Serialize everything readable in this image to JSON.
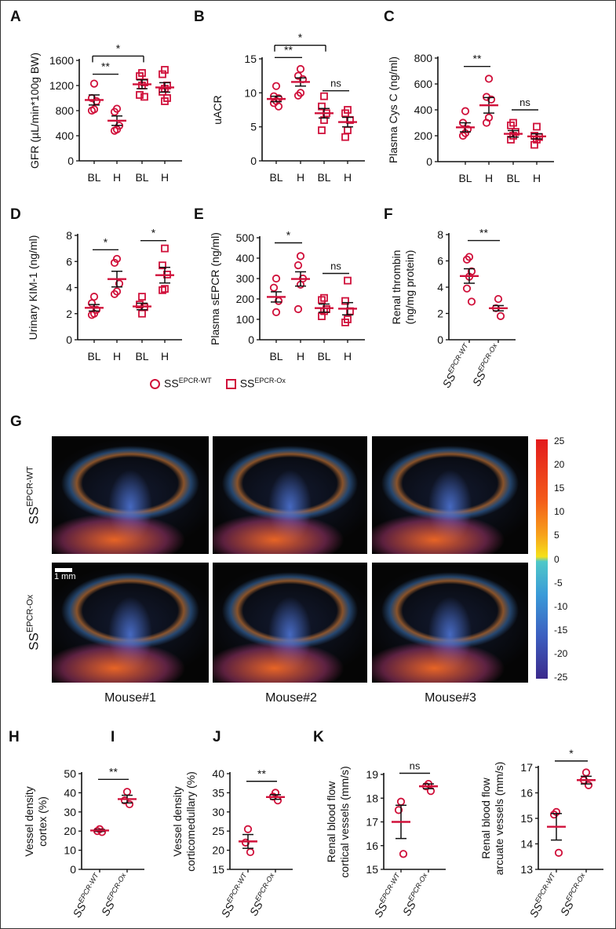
{
  "colors": {
    "marker": "#d0103a",
    "errorbar": "#111111"
  },
  "panel_labels": [
    "A",
    "B",
    "C",
    "D",
    "E",
    "F",
    "G",
    "H",
    "I",
    "J",
    "K"
  ],
  "legend": {
    "wt_prefix": "SS",
    "wt_sup": "EPCR-WT",
    "ox_prefix": "SS",
    "ox_sup": "EPCR-Ox"
  },
  "panel_g": {
    "rows": [
      {
        "prefix": "SS",
        "sup": "EPCR-WT"
      },
      {
        "prefix": "SS",
        "sup": "EPCR-Ox"
      }
    ],
    "columns": [
      "Mouse#1",
      "Mouse#2",
      "Mouse#3"
    ],
    "scale_bar": "1 mm",
    "colorbar_ticks": [
      "25",
      "20",
      "15",
      "10",
      "5",
      "0",
      "-5",
      "-10",
      "-15",
      "-20",
      "-25"
    ],
    "colorbar_range": [
      -25,
      25
    ]
  },
  "chart_data": [
    {
      "id": "A",
      "type": "scatter",
      "ylabel": [
        "GFR (µL/min*100g BW)"
      ],
      "ylim": [
        0,
        1600
      ],
      "yticks": [
        0,
        400,
        800,
        1200,
        1600
      ],
      "categories": [
        "BL",
        "H",
        "BL",
        "H"
      ],
      "markers": [
        "circle",
        "circle",
        "square",
        "square"
      ],
      "values": [
        [
          1230,
          1000,
          950,
          820,
          800
        ],
        [
          830,
          780,
          560,
          500,
          480
        ],
        [
          1400,
          1350,
          1250,
          1200,
          1050,
          1020
        ],
        [
          1450,
          1380,
          1200,
          1150,
          1100,
          1000,
          950
        ]
      ],
      "mean": [
        970,
        640,
        1220,
        1170
      ],
      "sem": [
        80,
        75,
        70,
        75
      ],
      "sig": [
        {
          "from": 0,
          "to": 1,
          "label": "**",
          "at": 1380,
          "bracket": false
        },
        {
          "from": 0,
          "to": 2,
          "label": "*",
          "at": 1670,
          "bracket": true
        }
      ]
    },
    {
      "id": "B",
      "type": "scatter",
      "ylabel": [
        "uACR"
      ],
      "ylim": [
        0,
        15
      ],
      "yticks": [
        0,
        5,
        10,
        15
      ],
      "categories": [
        "BL",
        "H",
        "BL",
        "H"
      ],
      "markers": [
        "circle",
        "circle",
        "square",
        "square"
      ],
      "values": [
        [
          11,
          9.5,
          9.2,
          8.8,
          8.5,
          8
        ],
        [
          13.5,
          12.5,
          12,
          10,
          9.6
        ],
        [
          9.5,
          8,
          7,
          6,
          4.5
        ],
        [
          7.5,
          7,
          6,
          4.5,
          3.5
        ]
      ],
      "mean": [
        9.1,
        11.6,
        7.0,
        5.7
      ],
      "sem": [
        0.4,
        0.6,
        0.7,
        0.7
      ],
      "sig": [
        {
          "from": 0,
          "to": 1,
          "label": "**",
          "at": 15.2,
          "bracket": false
        },
        {
          "from": 0,
          "to": 2,
          "label": "*",
          "at": 17,
          "bracket": true
        },
        {
          "from": 2,
          "to": 3,
          "label": "ns",
          "at": 10.3,
          "bracket": false
        }
      ]
    },
    {
      "id": "C",
      "type": "scatter",
      "ylabel": [
        "Plasma Cys C (ng/ml)"
      ],
      "ylim": [
        0,
        800
      ],
      "yticks": [
        0,
        200,
        400,
        600,
        800
      ],
      "categories": [
        "BL",
        "H",
        "BL",
        "H"
      ],
      "markers": [
        "circle",
        "circle",
        "square",
        "square"
      ],
      "values": [
        [
          390,
          300,
          250,
          220,
          200
        ],
        [
          640,
          500,
          480,
          340,
          300
        ],
        [
          300,
          280,
          230,
          200,
          170
        ],
        [
          270,
          200,
          190,
          170,
          130
        ]
      ],
      "mean": [
        265,
        435,
        215,
        195
      ],
      "sem": [
        35,
        60,
        25,
        20
      ],
      "sig": [
        {
          "from": 0,
          "to": 1,
          "label": "**",
          "at": 735,
          "bracket": false
        },
        {
          "from": 2,
          "to": 3,
          "label": "ns",
          "at": 400,
          "bracket": false
        }
      ]
    },
    {
      "id": "D",
      "type": "scatter",
      "ylabel": [
        "Urinary KIM-1 (ng/ml)"
      ],
      "ylim": [
        0,
        8
      ],
      "yticks": [
        0,
        2,
        4,
        6,
        8
      ],
      "categories": [
        "BL",
        "H",
        "BL",
        "H"
      ],
      "markers": [
        "circle",
        "circle",
        "square",
        "square"
      ],
      "values": [
        [
          3.3,
          2.8,
          2.3,
          2.0,
          1.9
        ],
        [
          6.2,
          5.9,
          4.3,
          3.7,
          3.5
        ],
        [
          3.3,
          2.7,
          2.5,
          2.0
        ],
        [
          7.0,
          5.7,
          5.0,
          3.9,
          3.8
        ]
      ],
      "mean": [
        2.45,
        4.65,
        2.55,
        4.95
      ],
      "sem": [
        0.25,
        0.6,
        0.25,
        0.6
      ],
      "sig": [
        {
          "from": 0,
          "to": 1,
          "label": "*",
          "at": 6.9,
          "bracket": false
        },
        {
          "from": 2,
          "to": 3,
          "label": "*",
          "at": 7.6,
          "bracket": false
        }
      ]
    },
    {
      "id": "E",
      "type": "scatter",
      "ylabel": [
        "Plasma sEPCR (ng/ml)"
      ],
      "ylim": [
        0,
        500
      ],
      "yticks": [
        0,
        100,
        200,
        300,
        400,
        500
      ],
      "categories": [
        "BL",
        "H",
        "BL",
        "H"
      ],
      "markers": [
        "circle",
        "circle",
        "square",
        "square"
      ],
      "values": [
        [
          300,
          255,
          190,
          135
        ],
        [
          410,
          365,
          300,
          270,
          150
        ],
        [
          205,
          195,
          150,
          140,
          115
        ],
        [
          290,
          190,
          140,
          100,
          85
        ]
      ],
      "mean": [
        210,
        298,
        155,
        152
      ],
      "sem": [
        25,
        35,
        20,
        30
      ],
      "sig": [
        {
          "from": 0,
          "to": 1,
          "label": "*",
          "at": 475,
          "bracket": false
        },
        {
          "from": 2,
          "to": 3,
          "label": "ns",
          "at": 325,
          "bracket": false
        }
      ]
    },
    {
      "id": "F",
      "type": "scatter",
      "ylabel": [
        "Renal thrombin",
        "(ng/mg protein)"
      ],
      "ylim": [
        0,
        8
      ],
      "yticks": [
        0,
        2,
        4,
        6,
        8
      ],
      "categories": [
        {
          "prefix": "SS",
          "sup": "EPCR-WT"
        },
        {
          "prefix": "SS",
          "sup": "EPCR-Ox"
        }
      ],
      "markers": [
        "circle",
        "circle"
      ],
      "values": [
        [
          6.3,
          6.1,
          5.2,
          4.8,
          3.9,
          2.9
        ],
        [
          3.1,
          2.4,
          1.8
        ]
      ],
      "mean": [
        4.85,
        2.4
      ],
      "sem": [
        0.55,
        0.2
      ],
      "sig": [
        {
          "from": 0,
          "to": 1,
          "label": "**",
          "at": 7.55,
          "bracket": false
        }
      ]
    },
    {
      "id": "H",
      "type": "scatter",
      "ylabel": [
        "Vessel density",
        "cortex (%)"
      ],
      "ylim": [
        0,
        50
      ],
      "yticks": [
        0,
        10,
        20,
        30,
        40,
        50
      ],
      "categories": [
        {
          "prefix": "SS",
          "sup": "EPCR-WT"
        },
        {
          "prefix": "SS",
          "sup": "EPCR-Ox"
        }
      ],
      "markers": [
        "circle",
        "circle"
      ],
      "values": [
        [
          21,
          20,
          19.5
        ],
        [
          40.5,
          36,
          34
        ]
      ],
      "mean": [
        20.3,
        36.7
      ],
      "sem": [
        0.5,
        2
      ],
      "sig": [
        {
          "from": 0,
          "to": 1,
          "label": "**",
          "at": 47,
          "bracket": false
        }
      ]
    },
    {
      "id": "I",
      "type": "scatter",
      "ylabel": [
        "Vessel density",
        "corticomedullary (%)"
      ],
      "ylim": [
        15,
        40
      ],
      "yticks": [
        15,
        20,
        25,
        30,
        35,
        40
      ],
      "categories": [
        {
          "prefix": "SS",
          "sup": "EPCR-WT"
        },
        {
          "prefix": "SS",
          "sup": "EPCR-Ox"
        }
      ],
      "markers": [
        "circle",
        "circle"
      ],
      "values": [
        [
          25.5,
          22,
          19.5
        ],
        [
          35,
          34,
          33
        ]
      ],
      "mean": [
        22.3,
        33.9
      ],
      "sem": [
        1.8,
        0.6
      ],
      "sig": [
        {
          "from": 0,
          "to": 1,
          "label": "**",
          "at": 38,
          "bracket": false
        }
      ]
    },
    {
      "id": "J",
      "type": "scatter",
      "ylabel": [
        "Renal blood flow",
        "cortical vessels (mm/s)"
      ],
      "ylim": [
        15,
        19
      ],
      "yticks": [
        15,
        16,
        17,
        18,
        19
      ],
      "categories": [
        {
          "prefix": "SS",
          "sup": "EPCR-WT"
        },
        {
          "prefix": "SS",
          "sup": "EPCR-Ox"
        }
      ],
      "markers": [
        "circle",
        "circle"
      ],
      "values": [
        [
          17.85,
          17.5,
          15.65
        ],
        [
          18.6,
          18.5,
          18.3
        ]
      ],
      "mean": [
        17.0,
        18.5
      ],
      "sem": [
        0.7,
        0.1
      ],
      "sig": [
        {
          "from": 0,
          "to": 1,
          "label": "ns",
          "at": 19.05,
          "bracket": false
        }
      ]
    },
    {
      "id": "K",
      "type": "scatter",
      "ylabel": [
        "Renal blood flow",
        "arcuate vessels (mm/s)"
      ],
      "ylim": [
        13,
        17
      ],
      "yticks": [
        13,
        14,
        15,
        16,
        17
      ],
      "categories": [
        {
          "prefix": "SS",
          "sup": "EPCR-WT"
        },
        {
          "prefix": "SS",
          "sup": "EPCR-Ox"
        }
      ],
      "markers": [
        "circle",
        "circle"
      ],
      "values": [
        [
          15.25,
          15.15,
          13.65
        ],
        [
          16.8,
          16.5,
          16.3
        ]
      ],
      "mean": [
        14.67,
        16.5
      ],
      "sem": [
        0.52,
        0.15
      ],
      "sig": [
        {
          "from": 0,
          "to": 1,
          "label": "*",
          "at": 17.25,
          "bracket": false
        }
      ]
    }
  ]
}
